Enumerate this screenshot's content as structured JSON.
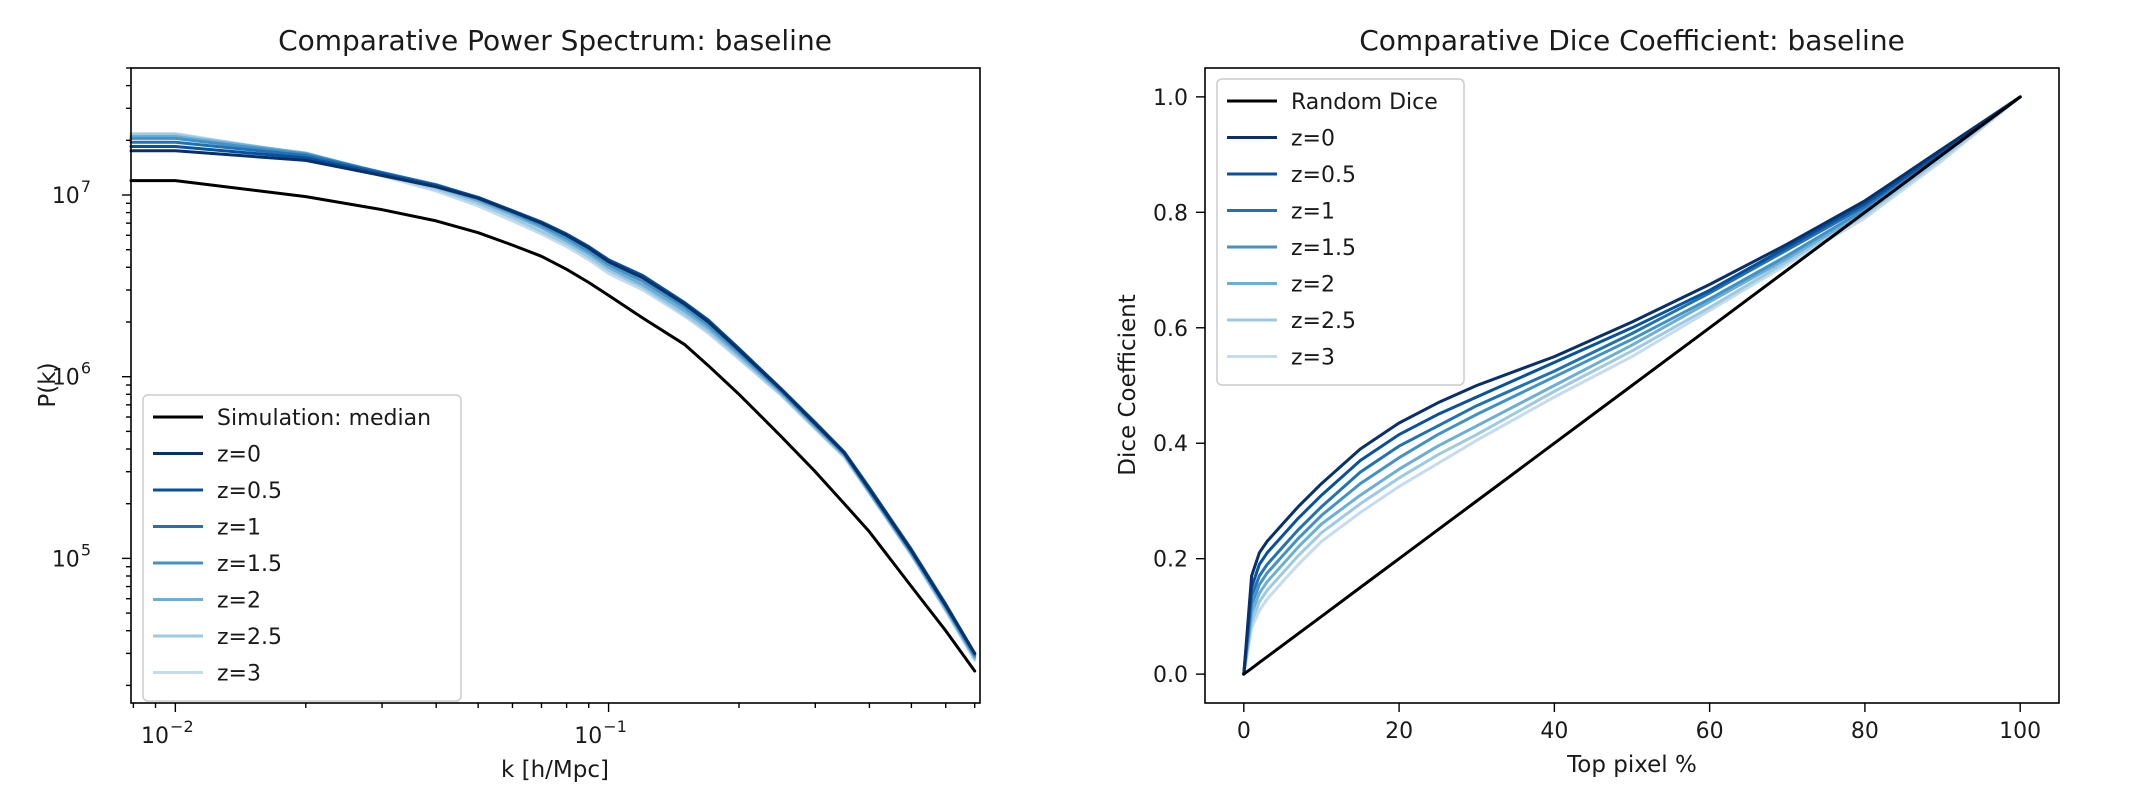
{
  "chart_data": [
    {
      "type": "line",
      "title": "Comparative Power Spectrum: baseline",
      "xlabel": "k [h/Mpc]",
      "ylabel": "P(k)",
      "xscale": "log",
      "yscale": "log",
      "xlim": [
        0.0079,
        0.72
      ],
      "ylim": [
        16000,
        50000000
      ],
      "xticks": [
        {
          "value": 0.01,
          "label": "10",
          "exp": "−2"
        },
        {
          "value": 0.1,
          "label": "10",
          "exp": "−1"
        }
      ],
      "yticks": [
        {
          "value": 100000,
          "label": "10",
          "exp": "5"
        },
        {
          "value": 1000000,
          "label": "10",
          "exp": "6"
        },
        {
          "value": 10000000,
          "label": "10",
          "exp": "7"
        }
      ],
      "legend_position": "lower-left",
      "x": [
        0.0079,
        0.01,
        0.02,
        0.03,
        0.04,
        0.05,
        0.06,
        0.07,
        0.08,
        0.09,
        0.1,
        0.12,
        0.15,
        0.17,
        0.2,
        0.25,
        0.3,
        0.35,
        0.4,
        0.5,
        0.6,
        0.7
      ],
      "series": [
        {
          "name": "Simulation: median",
          "color": "#000000",
          "values": [
            12000000,
            12000000,
            9800000,
            8300000,
            7200000,
            6200000,
            5300000,
            4600000,
            3900000,
            3300000,
            2800000,
            2100000,
            1500000,
            1150000,
            800000,
            470000,
            300000,
            200000,
            140000,
            70000,
            40000,
            24000
          ]
        },
        {
          "name": "z=0",
          "color": "#08306b",
          "values": [
            17500000,
            17500000,
            15500000,
            12800000,
            11100000,
            9600000,
            8100000,
            7000000,
            6000000,
            5100000,
            4300000,
            3500000,
            2500000,
            2000000,
            1400000,
            850000,
            550000,
            380000,
            240000,
            110000,
            55000,
            30000
          ]
        },
        {
          "name": "z=0.5",
          "color": "#08519c",
          "values": [
            18500000,
            18500000,
            16000000,
            13100000,
            11300000,
            9700000,
            8200000,
            7100000,
            6100000,
            5200000,
            4400000,
            3600000,
            2550000,
            2050000,
            1430000,
            860000,
            560000,
            385000,
            245000,
            112000,
            56000,
            30000
          ]
        },
        {
          "name": "z=1",
          "color": "#2171b5",
          "values": [
            19500000,
            19500000,
            16500000,
            13300000,
            11400000,
            9700000,
            8200000,
            7000000,
            6000000,
            5100000,
            4300000,
            3500000,
            2500000,
            2000000,
            1400000,
            850000,
            550000,
            380000,
            240000,
            110000,
            55000,
            29500
          ]
        },
        {
          "name": "z=1.5",
          "color": "#4292c6",
          "values": [
            20500000,
            20500000,
            16800000,
            13300000,
            11300000,
            9500000,
            8000000,
            6800000,
            5800000,
            4900000,
            4150000,
            3350000,
            2400000,
            1920000,
            1360000,
            830000,
            540000,
            375000,
            235000,
            108000,
            54000,
            29000
          ]
        },
        {
          "name": "z=2",
          "color": "#6baed6",
          "values": [
            21000000,
            21000000,
            17000000,
            13200000,
            11100000,
            9300000,
            7800000,
            6600000,
            5600000,
            4750000,
            4000000,
            3200000,
            2300000,
            1850000,
            1320000,
            820000,
            530000,
            370000,
            232000,
            106000,
            53000,
            28500
          ]
        },
        {
          "name": "z=2.5",
          "color": "#9ecae1",
          "values": [
            21500000,
            21500000,
            16900000,
            13000000,
            10800000,
            9000000,
            7500000,
            6300000,
            5400000,
            4550000,
            3850000,
            3100000,
            2200000,
            1780000,
            1280000,
            800000,
            520000,
            365000,
            230000,
            105000,
            52000,
            28000
          ]
        },
        {
          "name": "z=3",
          "color": "#c6dbef",
          "values": [
            21800000,
            21800000,
            16700000,
            12700000,
            10500000,
            8700000,
            7200000,
            6100000,
            5200000,
            4400000,
            3700000,
            3000000,
            2150000,
            1730000,
            1250000,
            790000,
            515000,
            360000,
            228000,
            104000,
            51500,
            27500
          ]
        }
      ]
    },
    {
      "type": "line",
      "title": "Comparative Dice Coefficient: baseline",
      "xlabel": "Top pixel %",
      "ylabel": "Dice Coefficient",
      "xlim": [
        -5,
        105
      ],
      "ylim": [
        -0.05,
        1.05
      ],
      "xticks": [
        0,
        20,
        40,
        60,
        80,
        100
      ],
      "yticks": [
        0.0,
        0.2,
        0.4,
        0.6,
        0.8,
        1.0
      ],
      "ytick_labels": [
        "0.0",
        "0.2",
        "0.4",
        "0.6",
        "0.8",
        "1.0"
      ],
      "legend_position": "upper-left",
      "x": [
        0,
        1,
        2,
        3,
        5,
        7,
        10,
        15,
        20,
        25,
        30,
        40,
        50,
        60,
        70,
        80,
        90,
        100
      ],
      "series": [
        {
          "name": "Random Dice",
          "color": "#000000",
          "values": [
            0,
            0.01,
            0.02,
            0.03,
            0.05,
            0.07,
            0.1,
            0.15,
            0.2,
            0.25,
            0.3,
            0.4,
            0.5,
            0.6,
            0.7,
            0.8,
            0.9,
            1.0
          ]
        },
        {
          "name": "z=0",
          "color": "#08306b",
          "values": [
            0,
            0.17,
            0.21,
            0.23,
            0.26,
            0.29,
            0.33,
            0.39,
            0.435,
            0.47,
            0.5,
            0.55,
            0.61,
            0.675,
            0.745,
            0.82,
            0.91,
            1.0
          ]
        },
        {
          "name": "z=0.5",
          "color": "#08519c",
          "values": [
            0,
            0.15,
            0.19,
            0.21,
            0.24,
            0.27,
            0.31,
            0.37,
            0.415,
            0.45,
            0.48,
            0.54,
            0.6,
            0.665,
            0.74,
            0.815,
            0.905,
            1.0
          ]
        },
        {
          "name": "z=1",
          "color": "#2171b5",
          "values": [
            0,
            0.135,
            0.17,
            0.19,
            0.22,
            0.25,
            0.29,
            0.35,
            0.395,
            0.43,
            0.465,
            0.525,
            0.59,
            0.66,
            0.735,
            0.81,
            0.905,
            1.0
          ]
        },
        {
          "name": "z=1.5",
          "color": "#4292c6",
          "values": [
            0,
            0.12,
            0.155,
            0.175,
            0.205,
            0.235,
            0.275,
            0.33,
            0.375,
            0.415,
            0.45,
            0.515,
            0.58,
            0.65,
            0.725,
            0.805,
            0.9,
            1.0
          ]
        },
        {
          "name": "z=2",
          "color": "#6baed6",
          "values": [
            0,
            0.105,
            0.14,
            0.16,
            0.19,
            0.22,
            0.26,
            0.31,
            0.355,
            0.395,
            0.43,
            0.5,
            0.57,
            0.645,
            0.72,
            0.8,
            0.9,
            1.0
          ]
        },
        {
          "name": "z=2.5",
          "color": "#9ecae1",
          "values": [
            0,
            0.09,
            0.125,
            0.145,
            0.175,
            0.205,
            0.245,
            0.295,
            0.34,
            0.38,
            0.415,
            0.49,
            0.56,
            0.635,
            0.715,
            0.795,
            0.895,
            1.0
          ]
        },
        {
          "name": "z=3",
          "color": "#c6dbef",
          "values": [
            0,
            0.08,
            0.11,
            0.13,
            0.16,
            0.19,
            0.23,
            0.28,
            0.325,
            0.365,
            0.405,
            0.48,
            0.55,
            0.63,
            0.71,
            0.79,
            0.89,
            1.0
          ]
        }
      ]
    }
  ]
}
